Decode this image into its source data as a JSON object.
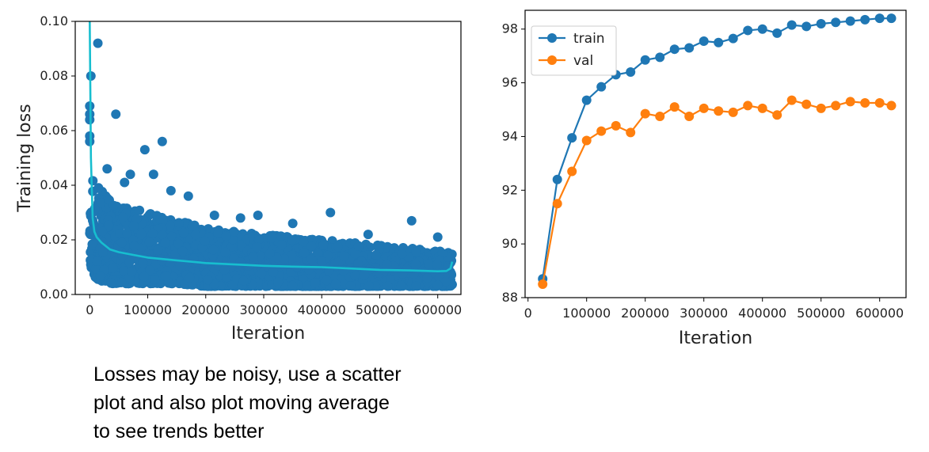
{
  "chart_data": [
    {
      "type": "scatter",
      "title": "",
      "xlabel": "Iteration",
      "ylabel": "Training loss",
      "xlim": [
        -25000,
        640000
      ],
      "ylim": [
        0.0,
        0.1
      ],
      "x_ticks": [
        0,
        100000,
        200000,
        300000,
        400000,
        500000,
        600000
      ],
      "x_tick_labels": [
        "0",
        "100000",
        "200000",
        "300000",
        "400000",
        "500000",
        "600000"
      ],
      "y_ticks": [
        0.0,
        0.02,
        0.04,
        0.06,
        0.08,
        0.1
      ],
      "y_tick_labels": [
        "0.00",
        "0.02",
        "0.04",
        "0.06",
        "0.08",
        "0.10"
      ],
      "grid": false,
      "scatter_color": "#1f77b4",
      "moving_average_color": "#17becf",
      "scatter_band": {
        "x": [
          0,
          5000,
          10000,
          20000,
          40000,
          70000,
          100000,
          150000,
          200000,
          250000,
          300000,
          350000,
          400000,
          450000,
          500000,
          550000,
          600000,
          625000
        ],
        "lower": [
          0.012,
          0.008,
          0.006,
          0.005,
          0.004,
          0.004,
          0.004,
          0.004,
          0.003,
          0.003,
          0.003,
          0.003,
          0.003,
          0.003,
          0.003,
          0.003,
          0.003,
          0.003
        ],
        "upper": [
          0.048,
          0.045,
          0.042,
          0.038,
          0.034,
          0.032,
          0.03,
          0.027,
          0.025,
          0.023,
          0.022,
          0.021,
          0.02,
          0.019,
          0.018,
          0.017,
          0.016,
          0.016
        ]
      },
      "outliers": [
        {
          "x": 0,
          "y": 0.069
        },
        {
          "x": 0,
          "y": 0.066
        },
        {
          "x": 0,
          "y": 0.064
        },
        {
          "x": 0,
          "y": 0.058
        },
        {
          "x": 0,
          "y": 0.056
        },
        {
          "x": 2000,
          "y": 0.08
        },
        {
          "x": 14000,
          "y": 0.092
        },
        {
          "x": 45000,
          "y": 0.066
        },
        {
          "x": 95000,
          "y": 0.053
        },
        {
          "x": 125000,
          "y": 0.056
        },
        {
          "x": 110000,
          "y": 0.044
        },
        {
          "x": 70000,
          "y": 0.044
        },
        {
          "x": 140000,
          "y": 0.038
        },
        {
          "x": 60000,
          "y": 0.041
        },
        {
          "x": 30000,
          "y": 0.046
        },
        {
          "x": 170000,
          "y": 0.036
        },
        {
          "x": 215000,
          "y": 0.029
        },
        {
          "x": 260000,
          "y": 0.028
        },
        {
          "x": 290000,
          "y": 0.029
        },
        {
          "x": 415000,
          "y": 0.03
        },
        {
          "x": 555000,
          "y": 0.027
        },
        {
          "x": 350000,
          "y": 0.026
        },
        {
          "x": 480000,
          "y": 0.022
        },
        {
          "x": 600000,
          "y": 0.021
        }
      ],
      "moving_average": {
        "x": [
          0,
          2000,
          5000,
          8000,
          12000,
          20000,
          35000,
          50000,
          75000,
          100000,
          150000,
          200000,
          250000,
          300000,
          350000,
          400000,
          450000,
          500000,
          550000,
          600000,
          615000,
          622000,
          625000
        ],
        "y": [
          0.1,
          0.05,
          0.028,
          0.023,
          0.021,
          0.019,
          0.0165,
          0.0155,
          0.0145,
          0.0135,
          0.0125,
          0.0115,
          0.011,
          0.0105,
          0.0102,
          0.01,
          0.0095,
          0.009,
          0.0088,
          0.0085,
          0.0086,
          0.0095,
          0.012
        ]
      }
    },
    {
      "type": "line",
      "title": "",
      "xlabel": "Iteration",
      "ylabel": "",
      "xlim": [
        -5000,
        645000
      ],
      "ylim": [
        88,
        98.7
      ],
      "x_ticks": [
        0,
        100000,
        200000,
        300000,
        400000,
        500000,
        600000
      ],
      "x_tick_labels": [
        "0",
        "100000",
        "200000",
        "300000",
        "400000",
        "500000",
        "600000"
      ],
      "y_ticks": [
        88,
        90,
        92,
        94,
        96,
        98
      ],
      "y_tick_labels": [
        "88",
        "90",
        "92",
        "94",
        "96",
        "98"
      ],
      "grid": false,
      "legend_position": "top-left",
      "x": [
        25000,
        50000,
        75000,
        100000,
        125000,
        150000,
        175000,
        200000,
        225000,
        250000,
        275000,
        300000,
        325000,
        350000,
        375000,
        400000,
        425000,
        450000,
        475000,
        500000,
        525000,
        550000,
        575000,
        600000,
        620000
      ],
      "series": [
        {
          "name": "train",
          "color": "#1f77b4",
          "values": [
            88.7,
            92.4,
            93.95,
            95.35,
            95.85,
            96.3,
            96.4,
            96.85,
            96.95,
            97.25,
            97.3,
            97.55,
            97.5,
            97.65,
            97.95,
            98.0,
            97.85,
            98.15,
            98.1,
            98.2,
            98.25,
            98.3,
            98.35,
            98.4,
            98.4
          ]
        },
        {
          "name": "val",
          "color": "#ff7f0e",
          "values": [
            88.5,
            91.5,
            92.7,
            93.85,
            94.2,
            94.4,
            94.15,
            94.85,
            94.75,
            95.1,
            94.75,
            95.05,
            94.95,
            94.9,
            95.15,
            95.05,
            94.8,
            95.35,
            95.2,
            95.05,
            95.15,
            95.3,
            95.25,
            95.25,
            95.15
          ]
        }
      ]
    }
  ],
  "caption_lines": [
    "Losses may be noisy, use a scatter",
    "plot and also plot moving average",
    "to see trends better"
  ]
}
